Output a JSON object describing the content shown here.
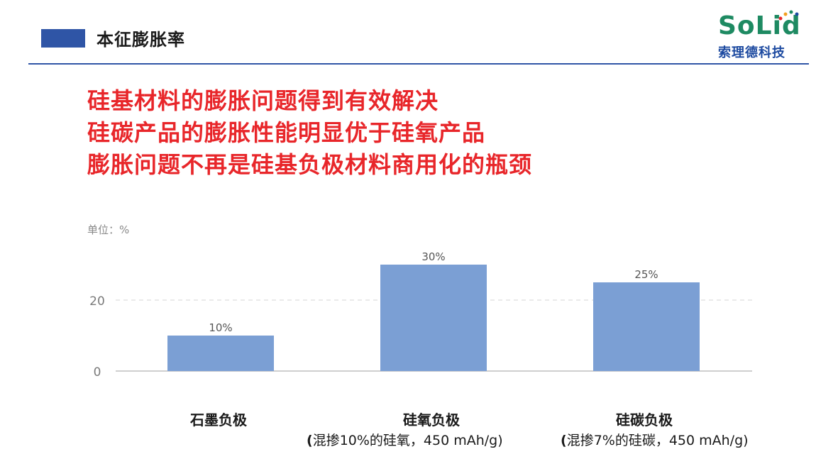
{
  "header": {
    "title": "本征膨胀率"
  },
  "logo": {
    "word": "SoLid",
    "subtitle": "索理德科技"
  },
  "headlines": [
    "硅基材料的膨胀问题得到有效解决",
    "硅碳产品的膨胀性能明显优于硅氧产品",
    "膨胀问题不再是硅基负极材料商用化的瓶颈"
  ],
  "colors": {
    "accent_blue": "#2f55a6",
    "headline_red": "#e8262a",
    "bar": "#7b9fd4",
    "logo_green": "#1e8a62"
  },
  "chart_data": {
    "type": "bar",
    "unit_label": "单位：%",
    "categories": [
      "石墨负极",
      "硅氧负极",
      "硅碳负极"
    ],
    "category_notes": [
      "",
      "混掺10%的硅氧，450 mAh/g",
      "混掺7%的硅碳，450 mAh/g"
    ],
    "values": [
      10,
      30,
      25
    ],
    "data_labels": [
      "10%",
      "30%",
      "25%"
    ],
    "yticks": [
      0,
      20
    ],
    "ylim": [
      0,
      30
    ],
    "grid": "dashed line at 20"
  }
}
